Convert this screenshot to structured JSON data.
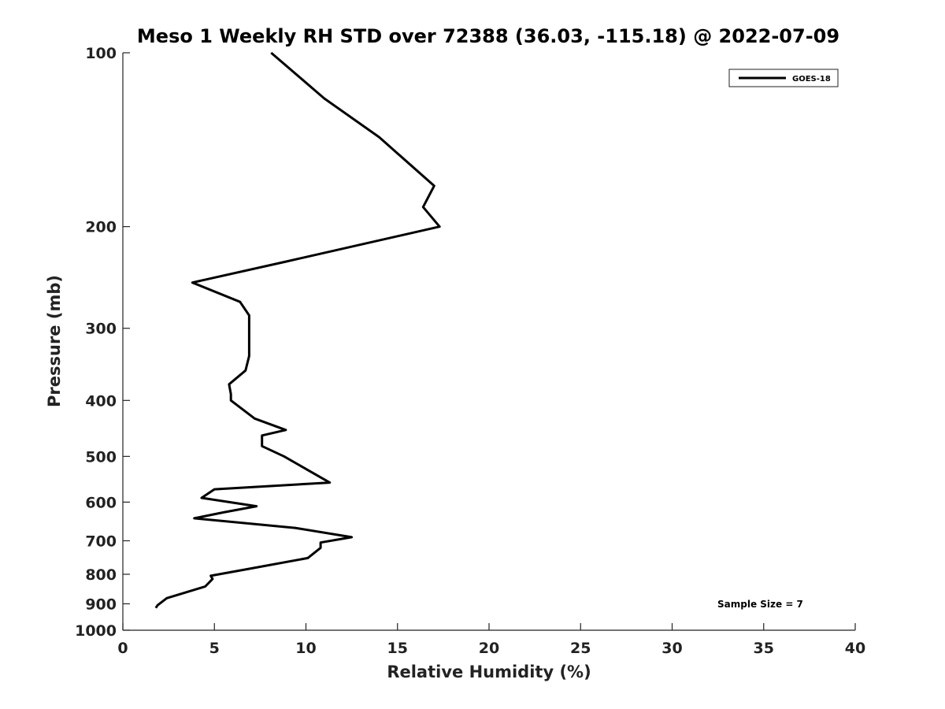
{
  "chart_data": {
    "type": "line",
    "title": "Meso 1 Weekly RH STD over 72388 (36.03, -115.18) @ 2022-07-09",
    "xlabel": "Relative Humidity (%)",
    "ylabel": "Pressure (mb)",
    "xlim": [
      0,
      40
    ],
    "ylim": [
      100,
      1000
    ],
    "y_scale": "log",
    "y_reversed": true,
    "grid": false,
    "legend_position": "top-right",
    "x_ticks": [
      0,
      5,
      10,
      15,
      20,
      25,
      30,
      35,
      40
    ],
    "y_ticks": [
      100,
      200,
      300,
      400,
      500,
      600,
      700,
      800,
      900,
      1000
    ],
    "series": [
      {
        "name": "GOES-18",
        "color": "#000000",
        "x": [
          8.1,
          11.0,
          14.0,
          17.0,
          16.4,
          17.3,
          8.9,
          3.8,
          6.4,
          6.9,
          6.9,
          6.7,
          5.8,
          5.9,
          5.9,
          7.2,
          8.9,
          7.6,
          7.6,
          8.8,
          10.2,
          11.3,
          5.0,
          4.3,
          7.3,
          5.5,
          3.9,
          9.4,
          12.5,
          10.8,
          10.8,
          10.1,
          6.7,
          4.8,
          4.9,
          4.5,
          2.4,
          1.9,
          1.8
        ],
        "y": [
          100,
          120,
          140,
          170,
          185,
          200,
          230,
          250,
          270,
          285,
          335,
          355,
          375,
          390,
          400,
          430,
          450,
          460,
          480,
          500,
          530,
          555,
          570,
          590,
          610,
          625,
          640,
          665,
          690,
          705,
          720,
          750,
          785,
          805,
          815,
          840,
          880,
          905,
          915
        ]
      }
    ],
    "legend": {
      "entries": [
        "GOES-18"
      ]
    },
    "annotation": "Sample Size = 7"
  }
}
